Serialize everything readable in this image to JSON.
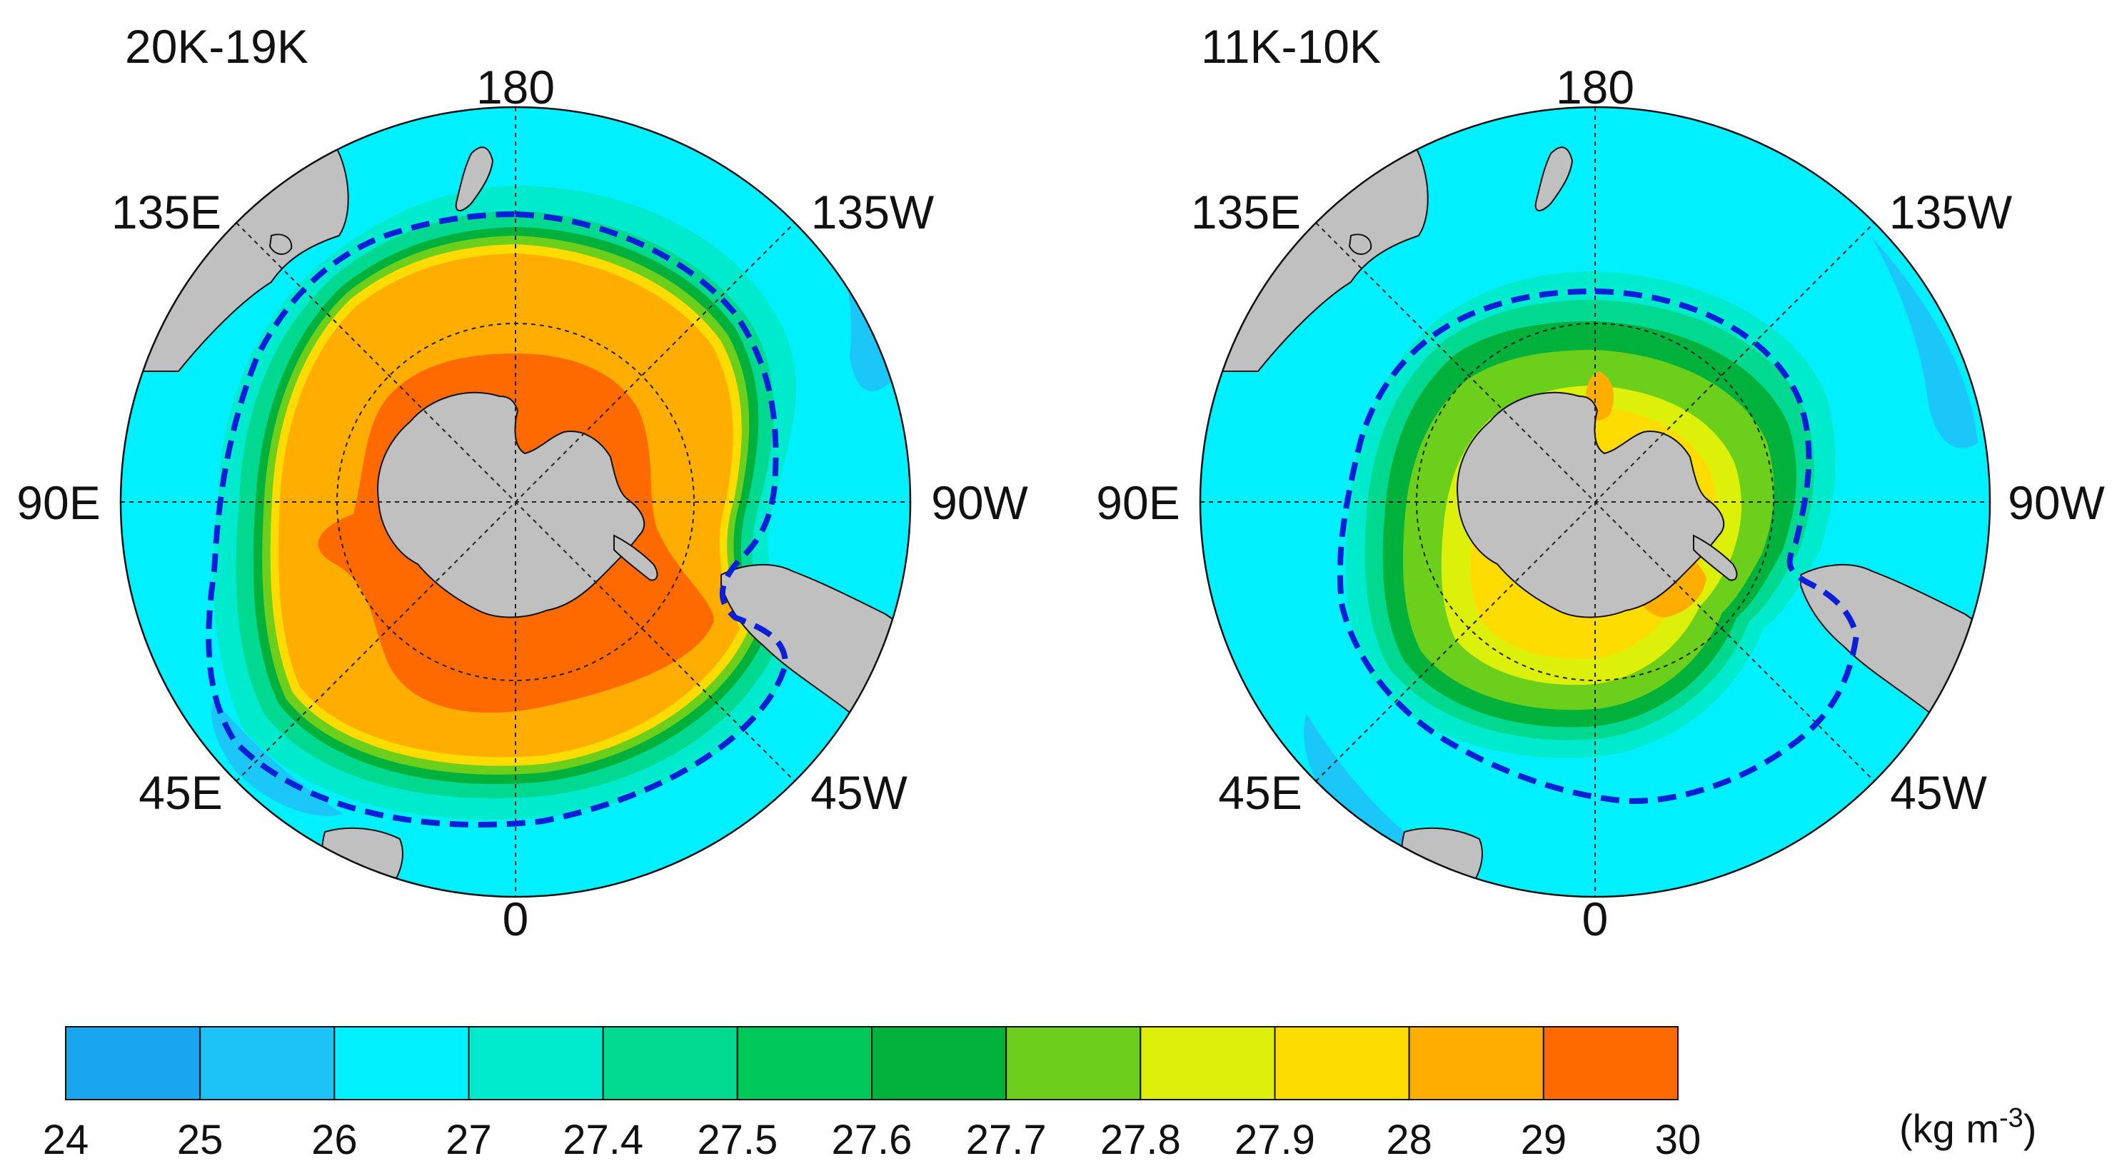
{
  "panels": [
    {
      "title": "20K-19K",
      "lon_labels": {
        "top": "180",
        "upper_left": "135E",
        "upper_right": "135W",
        "left": "90E",
        "right": "90W",
        "lower_left": "45E",
        "lower_right": "45W",
        "bottom": "0"
      }
    },
    {
      "title": "11K-10K",
      "lon_labels": {
        "top": "180",
        "upper_left": "135E",
        "upper_right": "135W",
        "left": "90E",
        "right": "90W",
        "lower_left": "45E",
        "lower_right": "45W",
        "bottom": "0"
      }
    }
  ],
  "colorbar": {
    "ticks": [
      "24",
      "25",
      "26",
      "27",
      "27.4",
      "27.5",
      "27.6",
      "27.7",
      "27.8",
      "27.9",
      "28",
      "29",
      "30"
    ],
    "colors": [
      "#1aa6ee",
      "#1dc2f7",
      "#00f0ff",
      "#00ebcd",
      "#00d98f",
      "#00c85a",
      "#00b23c",
      "#6ccf1c",
      "#ddf00a",
      "#ffdc00",
      "#ffae00",
      "#ff6a00"
    ],
    "unit_main": "(kg m",
    "unit_sup": "-3",
    "unit_end": ")"
  },
  "colors": {
    "land": "#c0c0c0",
    "ocean_outer": "#00f0ff",
    "contour_line": "#0b1fd8",
    "grid_line": "#222222"
  }
}
